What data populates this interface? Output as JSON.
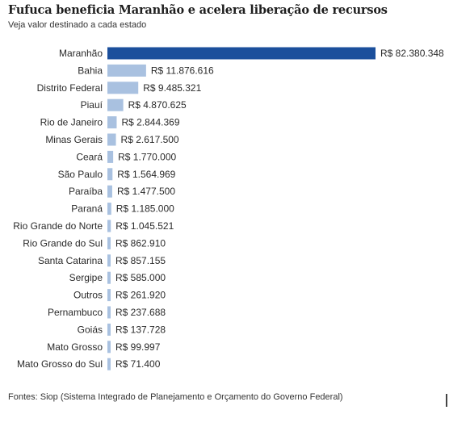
{
  "header": {
    "title": "Fufuca beneficia Maranhão e acelera liberação de recursos",
    "subtitle": "Veja valor destinado a cada estado"
  },
  "footer": {
    "source": "Fontes: Siop (Sistema Integrado de Planejamento e Orçamento do Governo Federal)"
  },
  "colors": {
    "highlight_bar": "#1b4f9c",
    "default_bar": "#a9c1e0"
  },
  "chart_data": {
    "type": "bar",
    "orientation": "horizontal",
    "title": "Fufuca beneficia Maranhão e acelera liberação de recursos",
    "subtitle": "Veja valor destinado a cada estado",
    "xlabel": "",
    "ylabel": "",
    "grid": false,
    "legend": "none",
    "xlim": [
      0,
      82380348
    ],
    "categories": [
      "Maranhão",
      "Bahia",
      "Distrito Federal",
      "Piauí",
      "Rio de Janeiro",
      "Minas Gerais",
      "Ceará",
      "São Paulo",
      "Paraíba",
      "Paraná",
      "Rio Grande do Norte",
      "Rio Grande do Sul",
      "Santa Catarina",
      "Sergipe",
      "Outros",
      "Pernambuco",
      "Goiás",
      "Mato Grosso",
      "Mato Grosso do Sul"
    ],
    "values": [
      82380348,
      11876616,
      9485321,
      4870625,
      2844369,
      2617500,
      1770000,
      1564969,
      1477500,
      1185000,
      1045521,
      862910,
      857155,
      585000,
      261920,
      237688,
      137728,
      99997,
      71400
    ],
    "value_labels": [
      "R$ 82.380.348",
      "R$ 11.876.616",
      "R$ 9.485.321",
      "R$ 4.870.625",
      "R$ 2.844.369",
      "R$ 2.617.500",
      "R$ 1.770.000",
      "R$ 1.564.969",
      "R$ 1.477.500",
      "R$ 1.185.000",
      "R$ 1.045.521",
      "R$ 862.910",
      "R$ 857.155",
      "R$ 585.000",
      "R$ 261.920",
      "R$ 237.688",
      "R$ 137.728",
      "R$ 99.997",
      "R$ 71.400"
    ],
    "highlight": "Maranhão"
  }
}
